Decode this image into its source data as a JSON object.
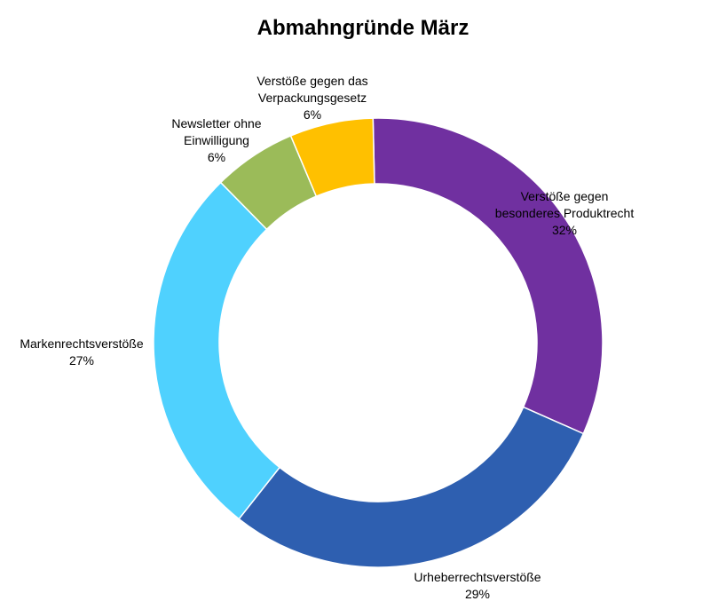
{
  "chart_data": {
    "type": "pie",
    "variant": "donut",
    "title": "Abmahngründe März",
    "slices": [
      {
        "name_lines": [
          "Verstöße gegen",
          "besonderes Produktrecht"
        ],
        "value": 32,
        "pct_label": "32%",
        "color": "#7030a0"
      },
      {
        "name_lines": [
          "Urheberrechtsverstöße"
        ],
        "value": 29,
        "pct_label": "29%",
        "color": "#2e5fb0"
      },
      {
        "name_lines": [
          "Markenrechtsverstöße"
        ],
        "value": 27,
        "pct_label": "27%",
        "color": "#4fd1fe"
      },
      {
        "name_lines": [
          "Newsletter ohne",
          "Einwilligung"
        ],
        "value": 6,
        "pct_label": "6%",
        "color": "#9bbb59"
      },
      {
        "name_lines": [
          "Verstöße gegen das",
          "Verpackungsgesetz"
        ],
        "value": 6,
        "pct_label": "6%",
        "color": "#ffc000"
      }
    ]
  }
}
